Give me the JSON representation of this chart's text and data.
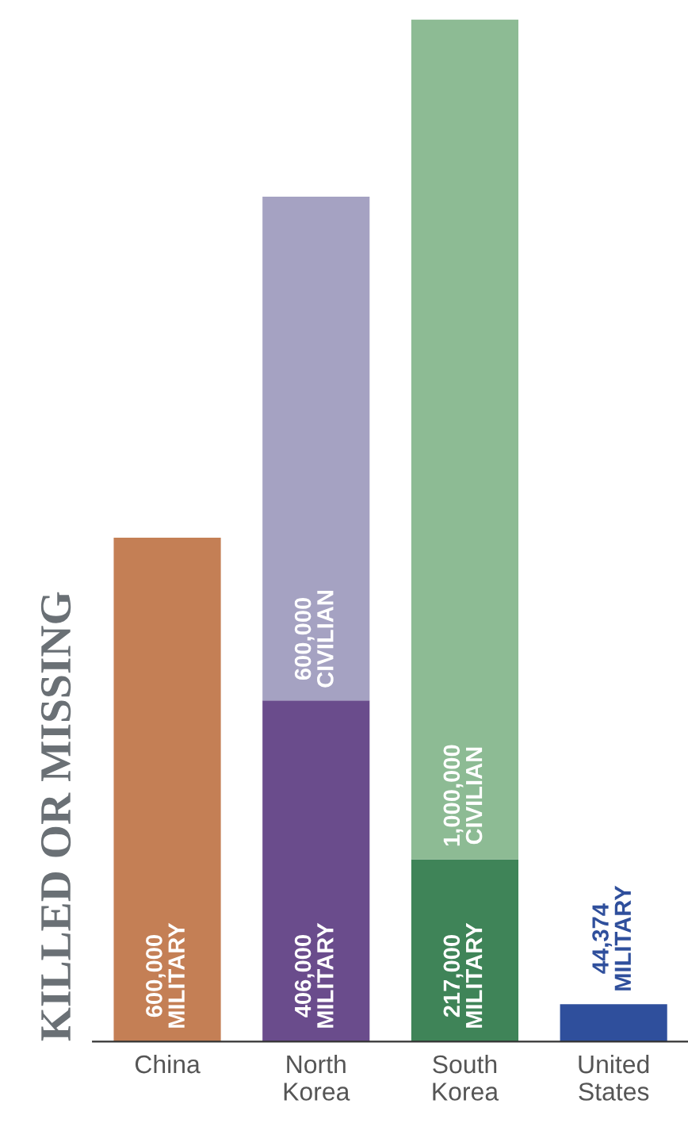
{
  "chart_data": {
    "type": "bar",
    "stacked": true,
    "ylabel": "KILLED OR MISSING",
    "categories": [
      "China",
      "North\nKorea",
      "South\nKorea",
      "United\nStates"
    ],
    "series": [
      {
        "name": "MILITARY",
        "colors": [
          "#c47f55",
          "#6a4c8c",
          "#3f8458",
          "#2f4f9c"
        ],
        "values": [
          600000,
          406000,
          217000,
          44374
        ],
        "value_labels": [
          "600,000",
          "406,000",
          "217,000",
          "44,374"
        ]
      },
      {
        "name": "CIVILIAN",
        "colors": [
          null,
          "#a5a2c2",
          "#8dbb94",
          null
        ],
        "values": [
          null,
          600000,
          1000000,
          null
        ],
        "value_labels": [
          null,
          "600,000",
          "1,000,000",
          null
        ]
      }
    ],
    "legend": false,
    "grid": false
  }
}
